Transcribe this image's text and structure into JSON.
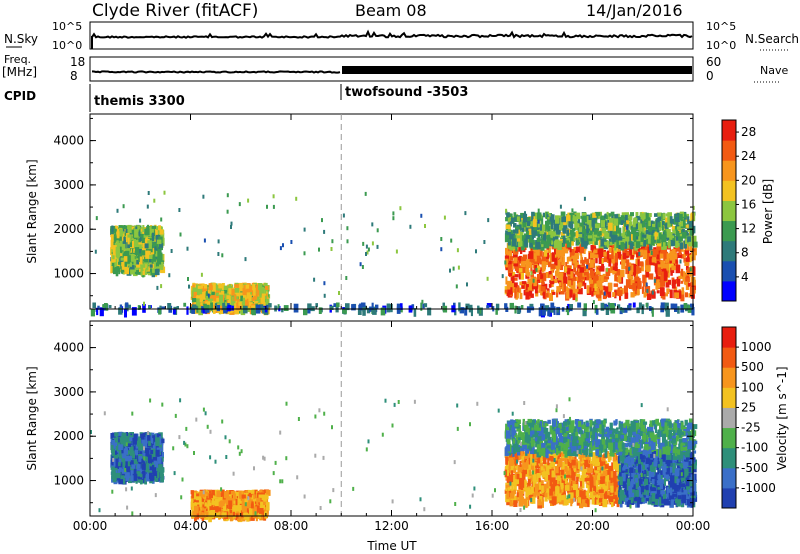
{
  "header": {
    "station": "Clyde River (fitACF)",
    "beam": "Beam 08",
    "date": "14/Jan/2016"
  },
  "strip1": {
    "left_label": "N.Sky",
    "right_label": "N.Search",
    "left_top": "10^5",
    "left_bottom": "10^0",
    "right_top": "10^5",
    "right_bottom": "10^0"
  },
  "strip2": {
    "left_label_1": "Freq.",
    "left_label_2": "[MHz]",
    "right_label": "Nave",
    "left_top": "18",
    "left_bottom": "8",
    "right_top": "60",
    "right_bottom": "0"
  },
  "cpid": {
    "label": "CPID",
    "modes": [
      {
        "name": "themis 3300",
        "start_hour": 0
      },
      {
        "name": "twofsound -3503",
        "start_hour": 10
      }
    ]
  },
  "chart_data": [
    {
      "type": "heatmap",
      "panel": "power",
      "xlabel": "",
      "ylabel": "Slant Range [km]",
      "xlim": [
        0,
        24
      ],
      "ylim": [
        200,
        4600
      ],
      "y_ticks": [
        "1000",
        "2000",
        "3000",
        "4000"
      ],
      "colorbar": {
        "label": "Power [dB]",
        "ticks": [
          "4",
          "8",
          "12",
          "16",
          "20",
          "24",
          "28"
        ],
        "range": [
          0,
          30
        ],
        "colors": [
          "#0000ff",
          "#1a4fb0",
          "#2e7a7a",
          "#3b9a50",
          "#8cc63f",
          "#f3c221",
          "#f7951d",
          "#f25a12",
          "#e81e0f"
        ]
      },
      "regions": [
        {
          "t": [
            0.8,
            2.8
          ],
          "r": [
            1100,
            2100
          ],
          "level": 14
        },
        {
          "t": [
            4.0,
            7.0
          ],
          "r": [
            250,
            800
          ],
          "level": 18
        },
        {
          "t": [
            16.5,
            24.0
          ],
          "r": [
            550,
            1700
          ],
          "level": 26
        },
        {
          "t": [
            16.5,
            24.0
          ],
          "r": [
            1700,
            2400
          ],
          "level": 12
        },
        {
          "t": [
            0.0,
            24.0
          ],
          "r": [
            200,
            350
          ],
          "level": 6
        }
      ]
    },
    {
      "type": "heatmap",
      "panel": "velocity",
      "xlabel": "Time UT",
      "ylabel": "Slant Range [km]",
      "xlim": [
        0,
        24
      ],
      "ylim": [
        200,
        4600
      ],
      "x_ticks": [
        "00:00",
        "04:00",
        "08:00",
        "12:00",
        "16:00",
        "20:00",
        "00:00"
      ],
      "y_ticks": [
        "1000",
        "2000",
        "3000",
        "4000"
      ],
      "colorbar": {
        "label": "Velocity [m s^-1]",
        "ticks": [
          "1000",
          "500",
          "100",
          "25",
          "-25",
          "-100",
          "-500",
          "-1000"
        ],
        "colors": [
          "#2040b0",
          "#3a6fc8",
          "#2e8f7a",
          "#4fb04a",
          "#aaaaaa",
          "#f3c221",
          "#f7951d",
          "#f25a12",
          "#e81e0f"
        ]
      },
      "regions": [
        {
          "t": [
            0.8,
            2.8
          ],
          "r": [
            1100,
            2100
          ],
          "level": 500
        },
        {
          "t": [
            4.0,
            7.0
          ],
          "r": [
            250,
            800
          ],
          "level": -100
        },
        {
          "t": [
            16.5,
            21.0
          ],
          "r": [
            550,
            1700
          ],
          "level": -100
        },
        {
          "t": [
            21.0,
            24.0
          ],
          "r": [
            550,
            1700
          ],
          "level": 500
        },
        {
          "t": [
            16.5,
            24.0
          ],
          "r": [
            1700,
            2400
          ],
          "level": 100
        }
      ]
    }
  ]
}
